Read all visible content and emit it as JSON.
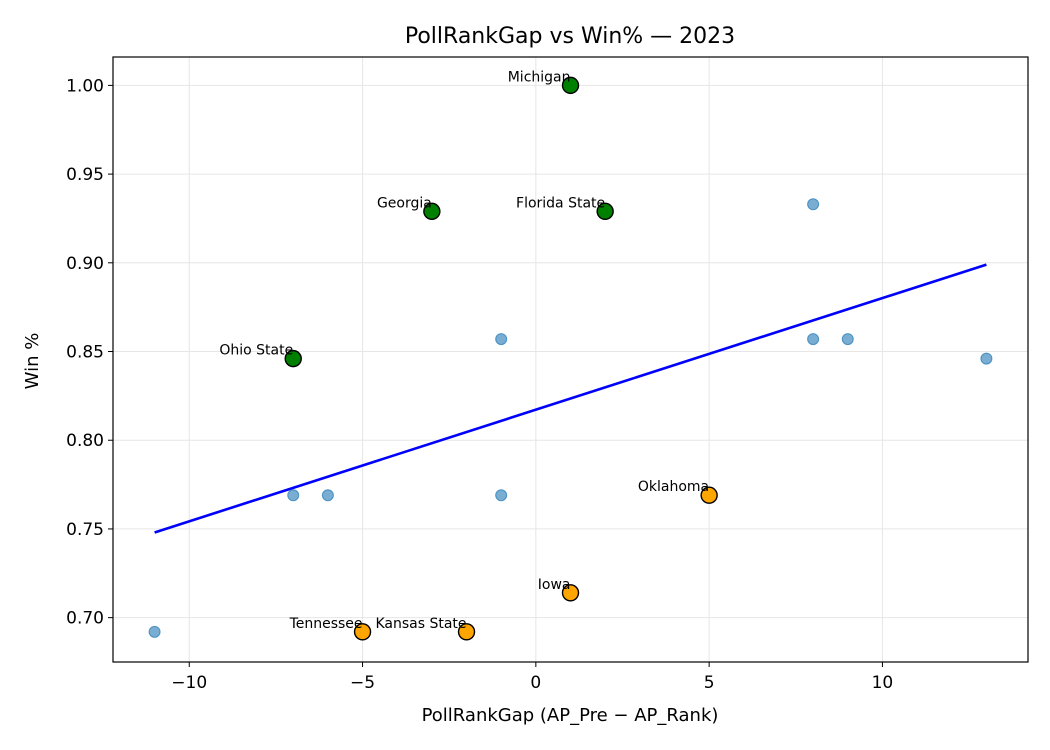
{
  "chart_data": {
    "type": "scatter",
    "title": "PollRankGap vs Win%  — 2023",
    "xlabel": "PollRankGap (AP_Pre − AP_Rank)",
    "ylabel": "Win %",
    "xlim": [
      -12.2,
      14.2
    ],
    "ylim": [
      0.675,
      1.016
    ],
    "xticks": [
      {
        "value": -10,
        "label": "−10"
      },
      {
        "value": -5,
        "label": "−5"
      },
      {
        "value": 0,
        "label": "0"
      },
      {
        "value": 5,
        "label": "5"
      },
      {
        "value": 10,
        "label": "10"
      }
    ],
    "yticks": [
      {
        "value": 0.7,
        "label": "0.70"
      },
      {
        "value": 0.75,
        "label": "0.75"
      },
      {
        "value": 0.8,
        "label": "0.80"
      },
      {
        "value": 0.85,
        "label": "0.85"
      },
      {
        "value": 0.9,
        "label": "0.90"
      },
      {
        "value": 0.95,
        "label": "0.95"
      },
      {
        "value": 1.0,
        "label": "1.00"
      }
    ],
    "grid": true,
    "points": [
      {
        "x": -11,
        "y": 0.692,
        "group": "other"
      },
      {
        "x": -7,
        "y": 0.769,
        "group": "other"
      },
      {
        "x": -6,
        "y": 0.769,
        "group": "other"
      },
      {
        "x": -1,
        "y": 0.769,
        "group": "other"
      },
      {
        "x": -1,
        "y": 0.857,
        "group": "other"
      },
      {
        "x": 8,
        "y": 0.933,
        "group": "other"
      },
      {
        "x": 8,
        "y": 0.857,
        "group": "other"
      },
      {
        "x": 9,
        "y": 0.857,
        "group": "other"
      },
      {
        "x": 13,
        "y": 0.846,
        "group": "other"
      },
      {
        "x": 1,
        "y": 1.0,
        "group": "top",
        "label": "Michigan"
      },
      {
        "x": -3,
        "y": 0.929,
        "group": "top",
        "label": "Georgia"
      },
      {
        "x": 2,
        "y": 0.929,
        "group": "top",
        "label": "Florida State"
      },
      {
        "x": -7,
        "y": 0.846,
        "group": "top",
        "label": "Ohio State"
      },
      {
        "x": 5,
        "y": 0.769,
        "group": "low",
        "label": "Oklahoma"
      },
      {
        "x": 1,
        "y": 0.714,
        "group": "low",
        "label": "Iowa"
      },
      {
        "x": -5,
        "y": 0.692,
        "group": "low",
        "label": "Tennessee"
      },
      {
        "x": -2,
        "y": 0.692,
        "group": "low",
        "label": "Kansas State"
      }
    ],
    "trendline": {
      "x": [
        -11,
        13
      ],
      "y": [
        0.748,
        0.899
      ],
      "color": "#0000ff"
    },
    "colors": {
      "other": "#1f77b4",
      "top": "#008000",
      "low": "#ffa500",
      "edge": "#000000"
    }
  }
}
